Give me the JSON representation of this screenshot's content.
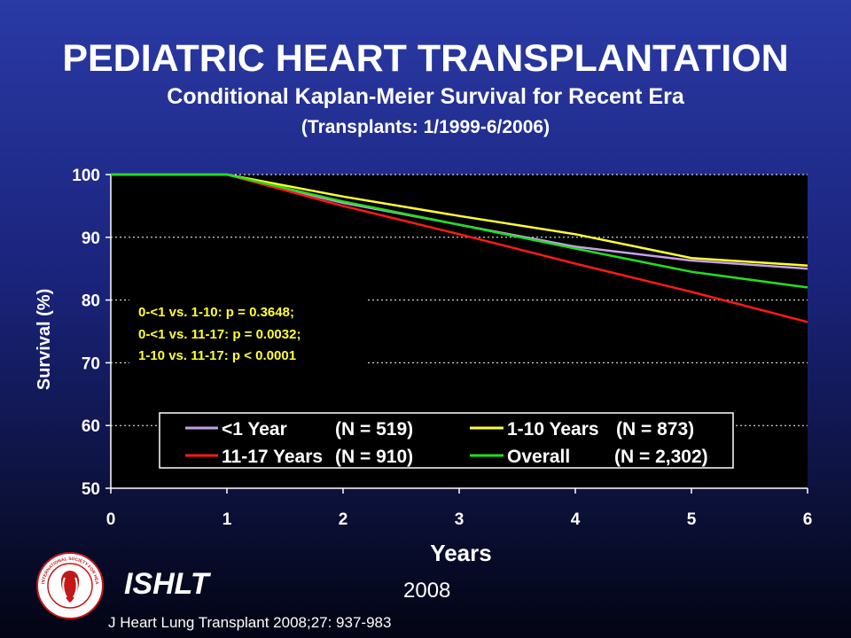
{
  "header": {
    "title": "PEDIATRIC HEART TRANSPLANTATION",
    "subtitle": "Conditional Kaplan-Meier Survival for Recent Era",
    "subtitle2": "(Transplants: 1/1999-6/2006)"
  },
  "footer": {
    "org": "ISHLT",
    "year": "2008",
    "citation": "J Heart Lung Transplant 2008;27: 937-983"
  },
  "logo": {
    "icon": "ishlt-seal-icon",
    "text": "INTERNATIONAL SOCIETY FOR HEART & LUNG TRANSPLANTATION"
  },
  "chart_data": {
    "type": "line",
    "title": "",
    "xlabel": "Years",
    "ylabel": "Survival (%)",
    "xlim": [
      0,
      6
    ],
    "ylim": [
      50,
      100
    ],
    "xticks": [
      0,
      1,
      2,
      3,
      4,
      5,
      6
    ],
    "yticks": [
      50,
      60,
      70,
      80,
      90,
      100
    ],
    "grid": "horizontal dotted",
    "plot_background": "#000000",
    "annotation": [
      "0-<1 vs. 1-10: p = 0.3648;",
      "0-<1 vs. 11-17: p = 0.0032;",
      "1-10 vs. 11-17: p < 0.0001"
    ],
    "legend_position": "bottom",
    "series": [
      {
        "name": "<1 Year",
        "n_label": "(N = 519)",
        "color": "#c8a0e8",
        "x": [
          0,
          1,
          2,
          3,
          4,
          5,
          6
        ],
        "y": [
          100,
          100,
          95.5,
          92.0,
          88.5,
          86.3,
          85.0
        ]
      },
      {
        "name": "1-10 Years",
        "n_label": "(N = 873)",
        "color": "#ffff33",
        "x": [
          0,
          1,
          2,
          3,
          4,
          5,
          6
        ],
        "y": [
          100,
          100,
          96.5,
          93.4,
          90.5,
          86.7,
          85.5
        ]
      },
      {
        "name": "11-17 Years",
        "n_label": "(N = 910)",
        "color": "#ff1a1a",
        "x": [
          0,
          1,
          2,
          3,
          4,
          5,
          6
        ],
        "y": [
          100,
          100,
          95.0,
          90.5,
          85.8,
          81.3,
          76.5
        ]
      },
      {
        "name": "Overall",
        "n_label": "(N = 2,302)",
        "color": "#22dd22",
        "x": [
          0,
          1,
          2,
          3,
          4,
          5,
          6
        ],
        "y": [
          100,
          100,
          95.7,
          92.0,
          88.2,
          84.5,
          82.0
        ]
      }
    ]
  }
}
